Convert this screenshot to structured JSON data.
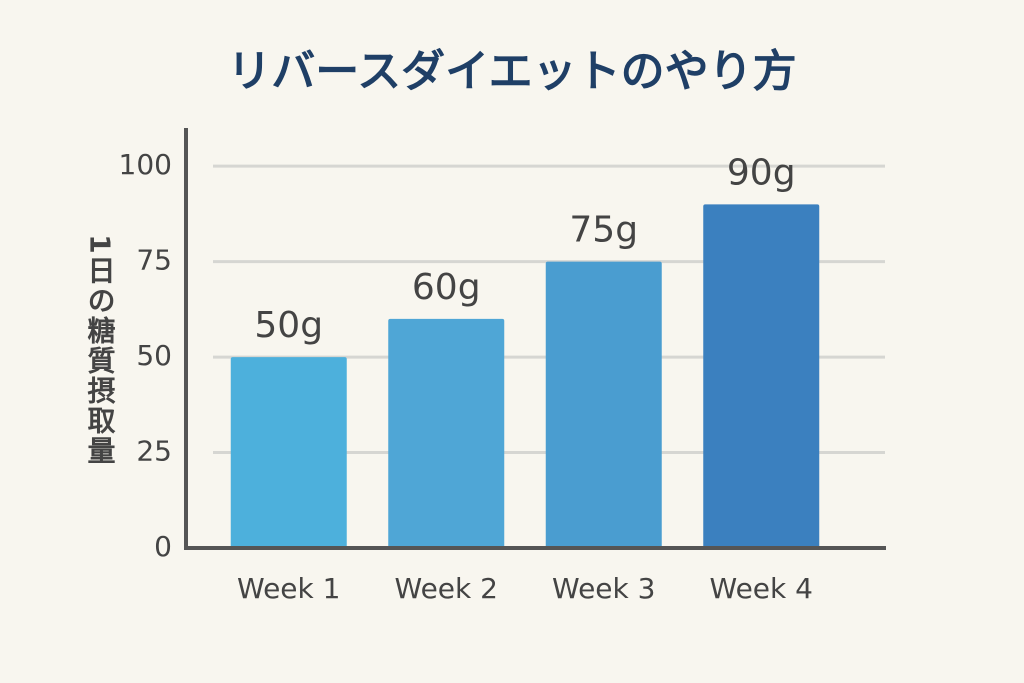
{
  "chart_data": {
    "type": "bar",
    "title": "リバースダイエットのやり方",
    "y_label": "1日の糖質摂取量",
    "categories": [
      "Week 1",
      "Week 2",
      "Week 3",
      "Week 4"
    ],
    "values": [
      50,
      60,
      75,
      90
    ],
    "value_labels": [
      "50g",
      "60g",
      "75g",
      "90g"
    ],
    "colors": [
      "#4db0dc",
      "#4fa6d6",
      "#4a9dd0",
      "#3b80bf"
    ],
    "ylim": [
      0,
      110
    ],
    "yticks": [
      0,
      25,
      50,
      75,
      100
    ],
    "grid": true
  }
}
